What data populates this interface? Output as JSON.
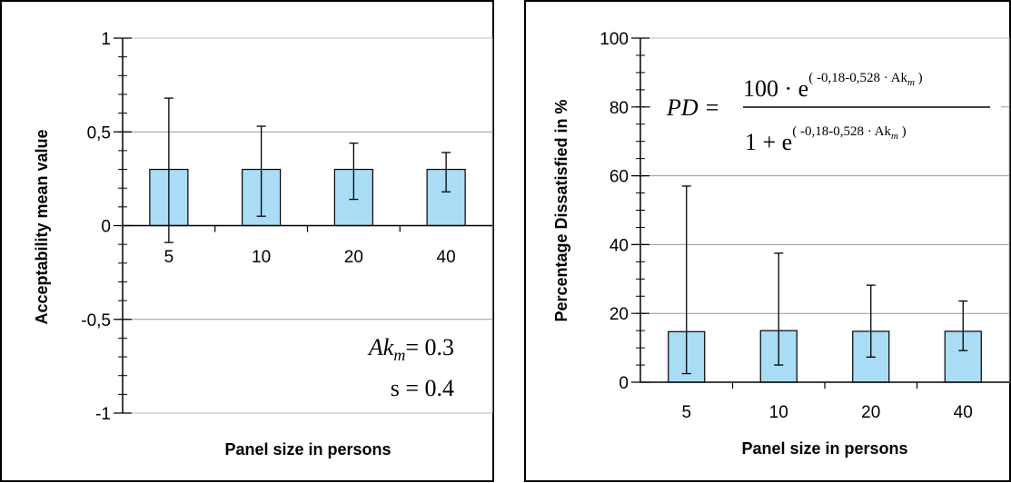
{
  "chart_data": [
    {
      "type": "bar",
      "categories": [
        "5",
        "10",
        "20",
        "40"
      ],
      "values": [
        0.3,
        0.3,
        0.3,
        0.3
      ],
      "error_bars": {
        "upper": [
          0.68,
          0.53,
          0.44,
          0.39
        ],
        "lower": [
          -0.09,
          0.05,
          0.14,
          0.18
        ]
      },
      "xlabel": "Panel size in persons",
      "ylabel": "Acceptability mean value",
      "ylim": [
        -1,
        1
      ],
      "y_ticks": [
        "-1",
        "-0,5",
        "0",
        "0,5",
        "1"
      ],
      "grid": "horizontal",
      "bar_color": "#aadcf5",
      "annotation": {
        "line1_var": "Ak",
        "line1_sub": "m",
        "line1_rest": "= 0.3",
        "line2": "s = 0.4"
      }
    },
    {
      "type": "bar",
      "categories": [
        "5",
        "10",
        "20",
        "40"
      ],
      "values": [
        14.7,
        15,
        14.8,
        14.8
      ],
      "error_bars": {
        "upper": [
          57,
          37.5,
          28.2,
          23.6
        ],
        "lower": [
          2.5,
          5,
          7.3,
          9.2
        ]
      },
      "xlabel": "Panel size in persons",
      "ylabel": "Percentage Dissatisfied in %",
      "ylim": [
        0,
        100
      ],
      "y_ticks": [
        "0",
        "20",
        "40",
        "60",
        "80",
        "100"
      ],
      "grid": "horizontal",
      "bar_color": "#aadcf5",
      "formula": {
        "lhs": "PD =",
        "num_prefix": "100 · e",
        "den_prefix": "1 + e",
        "exp_open": "( -0,18-0,528 · Ak",
        "exp_sub": "m",
        "exp_close": " )"
      }
    }
  ]
}
